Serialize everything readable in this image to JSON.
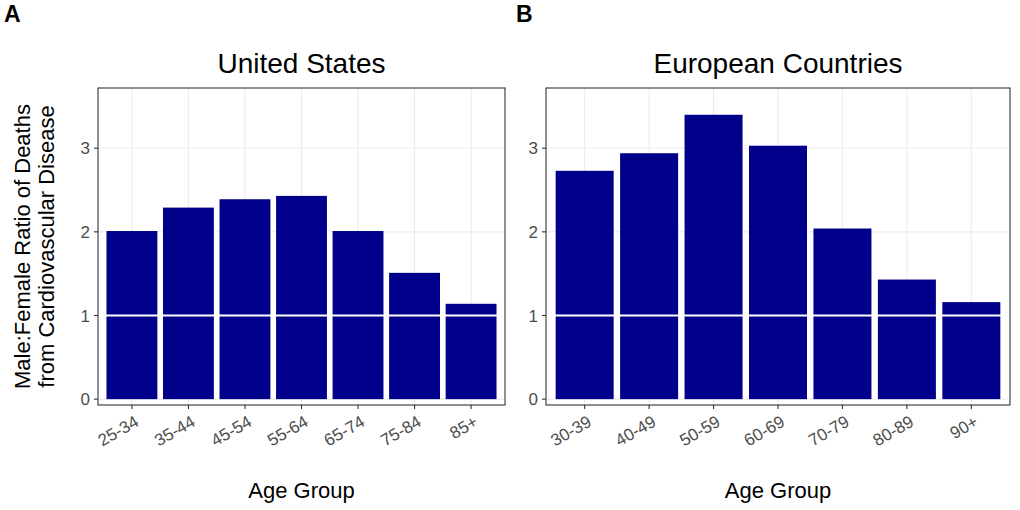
{
  "chart_data": [
    {
      "type": "bar",
      "panel": "A",
      "title": "United States",
      "xlabel": "Age Group",
      "ylabel": [
        "Male:Female Ratio of Deaths",
        "from Cardiovascular Disease"
      ],
      "categories": [
        "25-34",
        "35-44",
        "45-54",
        "55-64",
        "65-74",
        "75-84",
        "85+"
      ],
      "values": [
        2.01,
        2.29,
        2.39,
        2.43,
        2.01,
        1.51,
        1.14
      ],
      "color": "#00008b",
      "ylim": [
        -0.07,
        3.72
      ],
      "yticks": [
        0,
        1,
        2,
        3
      ],
      "grid": true,
      "hline": 1
    },
    {
      "type": "bar",
      "panel": "B",
      "title": "European Countries",
      "xlabel": "Age Group",
      "categories": [
        "30-39",
        "40-49",
        "50-59",
        "60-69",
        "70-79",
        "80-89",
        "90+"
      ],
      "values": [
        2.73,
        2.94,
        3.4,
        3.03,
        2.04,
        1.43,
        1.16
      ],
      "color": "#00008b",
      "ylim": [
        -0.07,
        3.72
      ],
      "yticks": [
        0,
        1,
        2,
        3
      ],
      "grid": true,
      "hline": 1
    }
  ]
}
